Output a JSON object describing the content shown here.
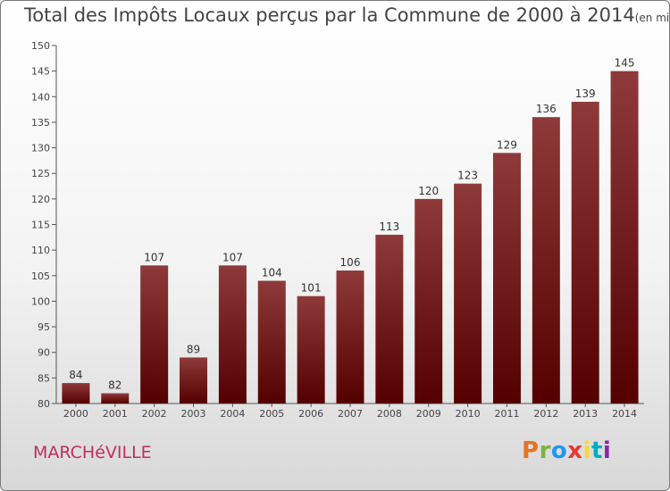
{
  "title": "Total des Impôts Locaux perçus par la Commune de 2000 à 2014",
  "unit": "(en milliers d'€)",
  "commune": "MARCHéVILLE",
  "logo": {
    "text": "Proxiti",
    "colors": [
      "#e8731c",
      "#7cb342",
      "#2196f3",
      "#e53935",
      "#fdd835",
      "#00acc1",
      "#8e24aa"
    ]
  },
  "colors": {
    "bar_top": "#8f3a3a",
    "bar_bottom": "#550000",
    "commune_text": "#c42c5e"
  },
  "chart_data": {
    "type": "bar",
    "categories": [
      "2000",
      "2001",
      "2002",
      "2003",
      "2004",
      "2005",
      "2006",
      "2007",
      "2008",
      "2009",
      "2010",
      "2011",
      "2012",
      "2013",
      "2014"
    ],
    "values": [
      84,
      82,
      107,
      89,
      107,
      104,
      101,
      106,
      113,
      120,
      123,
      129,
      136,
      139,
      145
    ],
    "title": "Total des Impôts Locaux perçus par la Commune de 2000 à 2014",
    "xlabel": "",
    "ylabel": "",
    "ylim": [
      80,
      150
    ],
    "yticks": [
      80,
      85,
      90,
      95,
      100,
      105,
      110,
      115,
      120,
      125,
      130,
      135,
      140,
      145,
      150
    ],
    "grid": false,
    "data_labels": true
  }
}
